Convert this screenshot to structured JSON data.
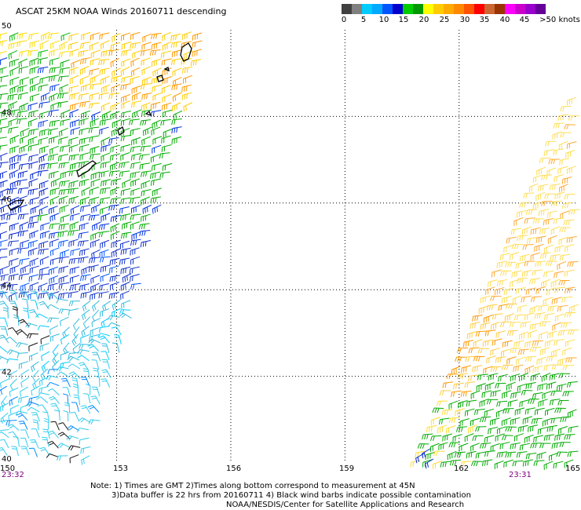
{
  "title": "ASCAT 25KM NOAA Winds 20160711 descending",
  "color_scale": {
    "colors": [
      "#404040",
      "#808080",
      "#00ccff",
      "#00aaff",
      "#0055ff",
      "#0000cc",
      "#00cc00",
      "#009900",
      "#ffff00",
      "#ffcc00",
      "#ffaa00",
      "#ff8800",
      "#ff5500",
      "#ff0000",
      "#cc6633",
      "#993300",
      "#ff00ff",
      "#cc00cc",
      "#9900cc",
      "#660099"
    ],
    "labels": [
      "0",
      "5",
      "10",
      "15",
      "20",
      "25",
      "30",
      "35",
      "40",
      "45",
      ">50 knots"
    ]
  },
  "axes": {
    "lat_labels": [
      "50",
      "48",
      "46",
      "44",
      "42",
      "40"
    ],
    "lon_labels": [
      "150",
      "153",
      "156",
      "159",
      "162",
      "165"
    ]
  },
  "times": {
    "left": "23:32",
    "right": "23:31"
  },
  "notes": {
    "line1": "Note: 1) Times are GMT 2)Times along bottom correspond to measurement at 45N",
    "line2": "3)Data buffer is 22 hrs from 20160711 4) Black wind barbs indicate possible contamination",
    "line3": "NOAA/NESDIS/Center for Satellite Applications and Research"
  },
  "wind_regions": [
    {
      "label": "left-swath-north-orange",
      "speed_kts": 25,
      "color": "#ffcc00"
    },
    {
      "label": "left-swath-green",
      "speed_kts": 17,
      "color": "#00bb00"
    },
    {
      "label": "left-swath-blue",
      "speed_kts": 12,
      "color": "#0033dd"
    },
    {
      "label": "left-swath-cyan",
      "speed_kts": 8,
      "color": "#33ccdd"
    },
    {
      "label": "right-swath-yellow",
      "speed_kts": 22,
      "color": "#ffdd33"
    },
    {
      "label": "right-swath-orange",
      "speed_kts": 30,
      "color": "#ff9900"
    },
    {
      "label": "right-swath-green",
      "speed_kts": 17,
      "color": "#00aa00"
    }
  ]
}
